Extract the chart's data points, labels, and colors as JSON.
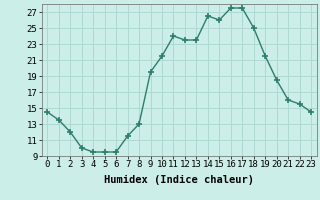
{
  "x": [
    0,
    1,
    2,
    3,
    4,
    5,
    6,
    7,
    8,
    9,
    10,
    11,
    12,
    13,
    14,
    15,
    16,
    17,
    18,
    19,
    20,
    21,
    22,
    23
  ],
  "y": [
    14.5,
    13.5,
    12,
    10,
    9.5,
    9.5,
    9.5,
    11.5,
    13,
    19.5,
    21.5,
    24,
    23.5,
    23.5,
    26.5,
    26,
    27.5,
    27.5,
    25,
    21.5,
    18.5,
    16,
    15.5,
    14.5
  ],
  "line_color": "#2d7d6d",
  "marker": "+",
  "marker_size": 4,
  "bg_color": "#cceee8",
  "grid_color": "#b0d8d2",
  "xlabel": "Humidex (Indice chaleur)",
  "ylim": [
    9,
    28
  ],
  "xlim": [
    -0.5,
    23.5
  ],
  "yticks": [
    9,
    11,
    13,
    15,
    17,
    19,
    21,
    23,
    25,
    27
  ],
  "xticks": [
    0,
    1,
    2,
    3,
    4,
    5,
    6,
    7,
    8,
    9,
    10,
    11,
    12,
    13,
    14,
    15,
    16,
    17,
    18,
    19,
    20,
    21,
    22,
    23
  ],
  "xlabel_fontsize": 7.5,
  "tick_fontsize": 6.5
}
